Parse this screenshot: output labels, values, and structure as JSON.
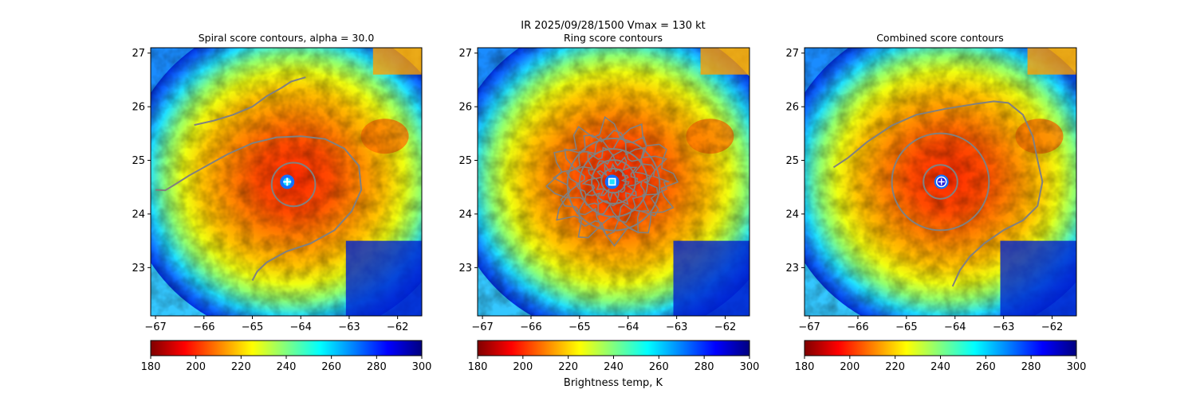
{
  "suptitle": "IR  2025/09/28/1500    Vmax = 130 kt",
  "colorbar_label": "Brightness temp, K",
  "colors": {
    "contour": "#808080",
    "cmap": [
      "#800000",
      "#ff0000",
      "#ff8000",
      "#ffff00",
      "#80ff80",
      "#00ffff",
      "#0080ff",
      "#0000ff",
      "#000080"
    ]
  },
  "chart_data": [
    {
      "type": "heatmap",
      "title": "Spiral score contours, alpha = 30.0",
      "xlabel": "",
      "ylabel": "",
      "xlim": [
        -67.1,
        -61.5
      ],
      "ylim": [
        22.1,
        27.1
      ],
      "xticks": [
        -67,
        -66,
        -65,
        -64,
        -63,
        -62
      ],
      "yticks": [
        23,
        24,
        25,
        26,
        27
      ],
      "center": [
        -64.28,
        24.6
      ],
      "marker": "plus",
      "colorbar": {
        "min": 180,
        "max": 300,
        "ticks": [
          180,
          200,
          220,
          240,
          260,
          280,
          300
        ],
        "unit": "K"
      },
      "contours": [
        [
          [
            -66.2,
            25.66
          ],
          [
            -65.8,
            25.74
          ],
          [
            -65.4,
            25.85
          ],
          [
            -65.0,
            26.0
          ],
          [
            -64.7,
            26.2
          ],
          [
            -64.4,
            26.35
          ],
          [
            -64.2,
            26.47
          ],
          [
            -63.9,
            26.55
          ]
        ],
        [
          [
            -67.0,
            24.45
          ],
          [
            -66.8,
            24.44
          ],
          [
            -66.6,
            24.55
          ],
          [
            -66.3,
            24.72
          ],
          [
            -65.9,
            24.92
          ],
          [
            -65.5,
            25.12
          ],
          [
            -65.0,
            25.32
          ],
          [
            -64.5,
            25.43
          ],
          [
            -64.0,
            25.45
          ],
          [
            -63.5,
            25.4
          ],
          [
            -63.1,
            25.22
          ],
          [
            -62.8,
            24.9
          ],
          [
            -62.75,
            24.45
          ],
          [
            -62.95,
            24.05
          ],
          [
            -63.3,
            23.7
          ],
          [
            -63.8,
            23.45
          ],
          [
            -64.3,
            23.3
          ],
          [
            -64.7,
            23.1
          ],
          [
            -64.9,
            22.93
          ],
          [
            -65.0,
            22.76
          ]
        ],
        {
          "circle": true,
          "cx": -64.15,
          "cy": 24.55,
          "r": 0.45
        }
      ]
    },
    {
      "type": "heatmap",
      "title": "Ring score contours",
      "xlabel": "",
      "ylabel": "",
      "xlim": [
        -67.1,
        -61.5
      ],
      "ylim": [
        22.1,
        27.1
      ],
      "xticks": [
        -67,
        -66,
        -65,
        -64,
        -63,
        -62
      ],
      "yticks": [
        23,
        24,
        25,
        26,
        27
      ],
      "center": [
        -64.33,
        24.6
      ],
      "marker": "square",
      "colorbar": {
        "min": 180,
        "max": 300,
        "ticks": [
          180,
          200,
          220,
          240,
          260,
          280,
          300
        ],
        "unit": "K"
      },
      "contours": [
        {
          "circle": true,
          "cx": -64.3,
          "cy": 24.55,
          "r": 0.95
        },
        {
          "circle": true,
          "cx": -64.3,
          "cy": 24.58,
          "r": 0.7
        },
        {
          "circle": true,
          "cx": -64.3,
          "cy": 24.6,
          "r": 0.45
        },
        {
          "circle": true,
          "cx": -64.3,
          "cy": 24.62,
          "r": 0.25
        }
      ]
    },
    {
      "type": "heatmap",
      "title": "Combined score contours",
      "xlabel": "",
      "ylabel": "",
      "xlim": [
        -67.1,
        -61.5
      ],
      "ylim": [
        22.1,
        27.1
      ],
      "xticks": [
        -67,
        -66,
        -65,
        -64,
        -63,
        -62
      ],
      "yticks": [
        23,
        24,
        25,
        26,
        27
      ],
      "center": [
        -64.28,
        24.6
      ],
      "marker": "plus-circle",
      "colorbar": {
        "min": 180,
        "max": 300,
        "ticks": [
          180,
          200,
          220,
          240,
          260,
          280,
          300
        ],
        "unit": "K"
      },
      "contours": [
        [
          [
            -66.5,
            24.87
          ],
          [
            -66.2,
            25.05
          ],
          [
            -65.8,
            25.35
          ],
          [
            -65.3,
            25.65
          ],
          [
            -64.8,
            25.85
          ],
          [
            -64.2,
            25.96
          ],
          [
            -63.6,
            26.05
          ],
          [
            -63.2,
            26.1
          ],
          [
            -62.9,
            26.07
          ],
          [
            -62.6,
            25.85
          ],
          [
            -62.4,
            25.45
          ],
          [
            -62.3,
            25.0
          ],
          [
            -62.2,
            24.6
          ],
          [
            -62.3,
            24.15
          ],
          [
            -62.6,
            23.88
          ],
          [
            -63.0,
            23.7
          ],
          [
            -63.4,
            23.45
          ],
          [
            -63.7,
            23.2
          ],
          [
            -63.9,
            22.95
          ],
          [
            -64.05,
            22.65
          ]
        ],
        {
          "circle": true,
          "cx": -64.3,
          "cy": 24.6,
          "r": 1.0
        },
        {
          "circle": true,
          "cx": -64.3,
          "cy": 24.6,
          "r": 0.35
        }
      ]
    }
  ]
}
